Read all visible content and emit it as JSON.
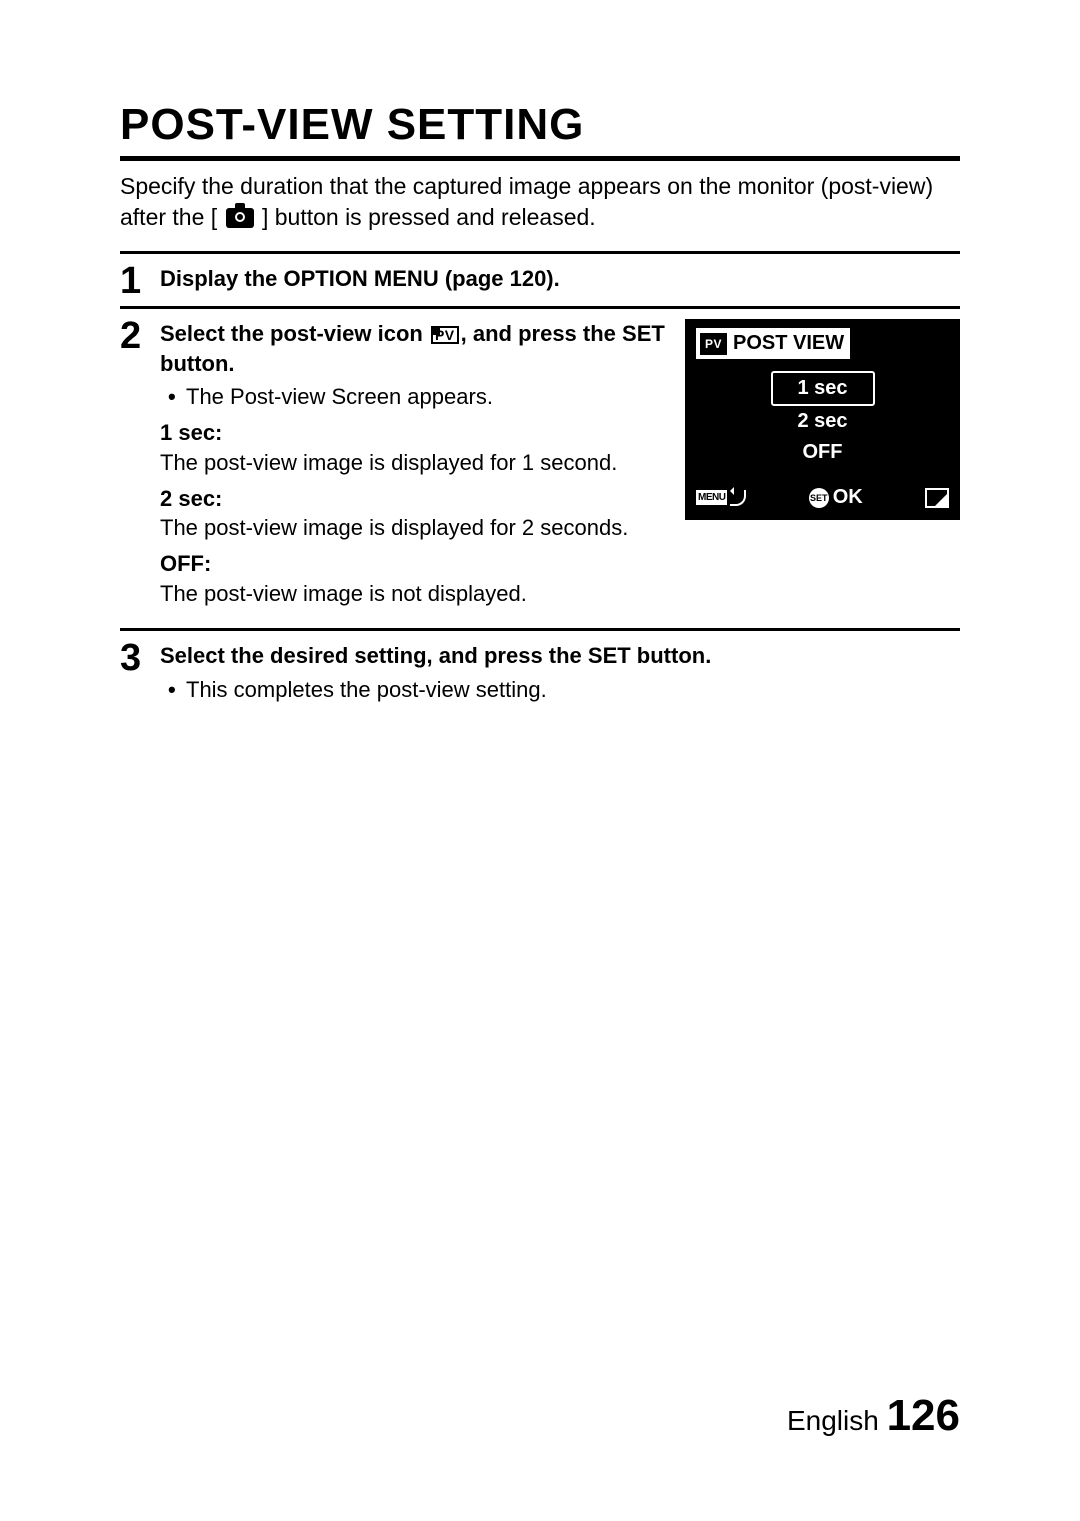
{
  "title": "POST-VIEW SETTING",
  "intro_before": "Specify the duration that the captured image appears on the monitor (post-view) after the [",
  "intro_after": "] button is pressed and released.",
  "steps": {
    "s1": {
      "num": "1",
      "head": "Display the OPTION MENU (page 120)."
    },
    "s2": {
      "num": "2",
      "head_before": "Select the post-view icon ",
      "head_after": ", and press the SET button.",
      "bullet": "The Post-view Screen appears.",
      "opt1_label": "1 sec:",
      "opt1_desc": "The post-view image is displayed for 1 second.",
      "opt2_label": "2 sec:",
      "opt2_desc": "The post-view image is displayed for 2 seconds.",
      "opt3_label": "OFF:",
      "opt3_desc": "The post-view image is not displayed."
    },
    "s3": {
      "num": "3",
      "head": "Select the desired setting, and press the SET button.",
      "bullet": "This completes the post-view setting."
    }
  },
  "screen": {
    "pv_badge": "PV",
    "title": "POST VIEW",
    "options": [
      "1 sec",
      "2 sec",
      "OFF"
    ],
    "selected_index": 0,
    "menu_label": "MENU",
    "set_label": "SET",
    "ok_label": "OK"
  },
  "pv_inline": "PV",
  "footer": {
    "lang": "English",
    "page": "126"
  },
  "colors": {
    "text": "#000000",
    "bg": "#ffffff",
    "screen_bg": "#000000",
    "screen_fg": "#ffffff"
  }
}
